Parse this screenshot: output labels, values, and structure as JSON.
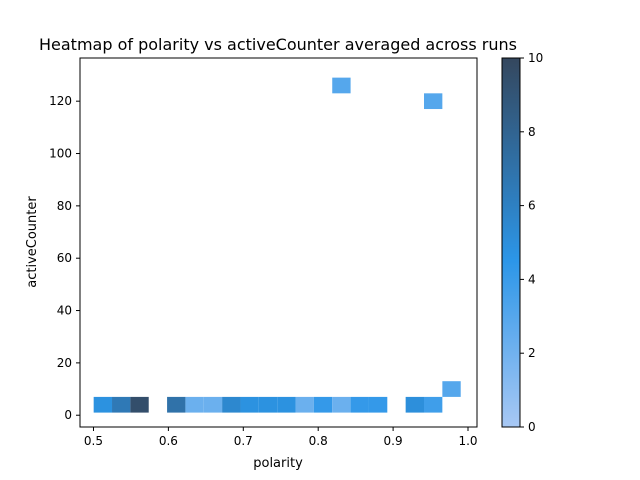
{
  "chart_data": {
    "type": "heatmap",
    "title": "Heatmap of polarity vs activeCounter averaged across runs",
    "xlabel": "polarity",
    "ylabel": "activeCounter",
    "xlim": [
      0.482,
      1.012
    ],
    "ylim": [
      -4.5,
      136.5
    ],
    "xticks": [
      0.5,
      0.6,
      0.7,
      0.8,
      0.9,
      1.0
    ],
    "xtick_labels": [
      "0.5",
      "0.6",
      "0.7",
      "0.8",
      "0.9",
      "1.0"
    ],
    "yticks": [
      0,
      20,
      40,
      60,
      80,
      100,
      120
    ],
    "ytick_labels": [
      "0",
      "20",
      "40",
      "60",
      "80",
      "100",
      "120"
    ],
    "grid": false,
    "bin_width_x": 0.0245,
    "bin_height_y": 6,
    "cells": [
      {
        "x": 0.5125,
        "y": 4,
        "value": 4.8
      },
      {
        "x": 0.537,
        "y": 4,
        "value": 6.5
      },
      {
        "x": 0.5615,
        "y": 4,
        "value": 9.5
      },
      {
        "x": 0.6105,
        "y": 4,
        "value": 7.0
      },
      {
        "x": 0.635,
        "y": 4,
        "value": 2.2
      },
      {
        "x": 0.6595,
        "y": 4,
        "value": 2.2
      },
      {
        "x": 0.684,
        "y": 4,
        "value": 5.5
      },
      {
        "x": 0.7085,
        "y": 4,
        "value": 4.8
      },
      {
        "x": 0.733,
        "y": 4,
        "value": 4.8
      },
      {
        "x": 0.7575,
        "y": 4,
        "value": 4.8
      },
      {
        "x": 0.782,
        "y": 4,
        "value": 2.2
      },
      {
        "x": 0.8065,
        "y": 4,
        "value": 4.2
      },
      {
        "x": 0.831,
        "y": 4,
        "value": 2.2
      },
      {
        "x": 0.8555,
        "y": 4,
        "value": 4.2
      },
      {
        "x": 0.88,
        "y": 4,
        "value": 4.2
      },
      {
        "x": 0.929,
        "y": 4,
        "value": 5.0
      },
      {
        "x": 0.9535,
        "y": 4,
        "value": 3.8
      },
      {
        "x": 0.978,
        "y": 10,
        "value": 3.0
      },
      {
        "x": 0.831,
        "y": 126,
        "value": 3.0
      },
      {
        "x": 0.9535,
        "y": 120,
        "value": 3.0
      }
    ],
    "colorbar": {
      "min": 0,
      "max": 10,
      "ticks": [
        0,
        2,
        4,
        6,
        8,
        10
      ],
      "tick_labels": [
        "0",
        "2",
        "4",
        "6",
        "8",
        "10"
      ],
      "colors": [
        "#a8c8f4",
        "#2c96e8",
        "#34475e"
      ]
    }
  }
}
